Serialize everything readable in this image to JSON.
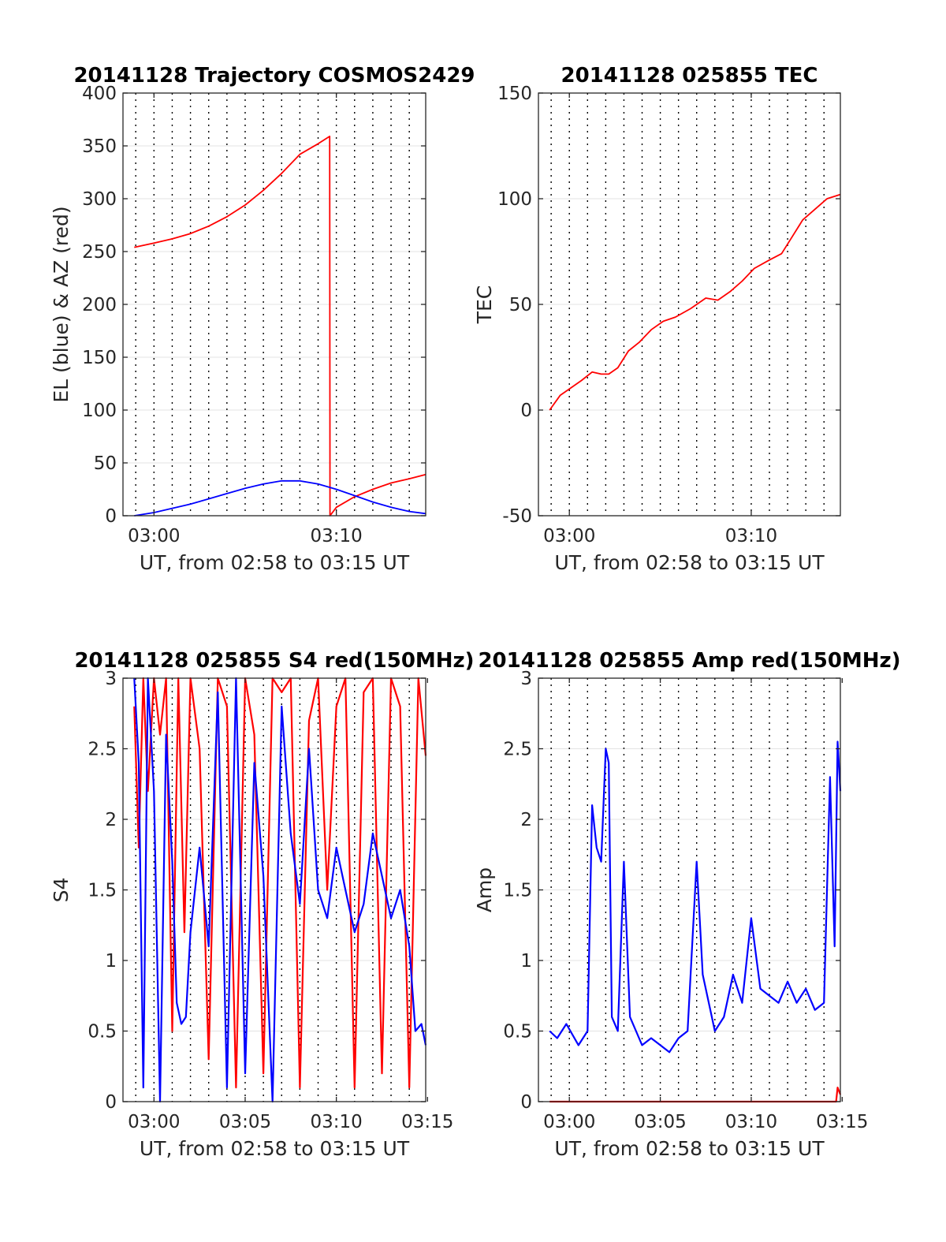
{
  "chart_data": [
    {
      "type": "line",
      "title": "20141128 Trajectory COSMOS2429",
      "xlabel": "UT, from 02:58 to 03:15 UT",
      "ylabel": "EL (blue) & AZ (red)",
      "xlim": [
        "02:58:18",
        "03:14:54"
      ],
      "ylim": [
        0,
        400
      ],
      "xticks": [
        "03:00",
        "03:10"
      ],
      "yticks": [
        0,
        50,
        100,
        150,
        200,
        250,
        300,
        350,
        400
      ],
      "grid": true,
      "colors": {
        "series_a": "#ff0000",
        "series_b": "#0000ff"
      },
      "series": [
        {
          "x": [
            "02:58:55",
            "03:00:00",
            "03:01:00",
            "03:02:00",
            "03:03:00",
            "03:04:00",
            "03:05:00",
            "03:06:00",
            "03:07:00",
            "03:08:00",
            "03:09:00",
            "03:09:38",
            "03:09:39",
            "03:10:00",
            "03:11:00",
            "03:12:00",
            "03:13:00",
            "03:14:00",
            "03:14:54"
          ],
          "y": [
            254,
            258,
            262,
            267,
            274,
            283,
            294,
            308,
            324,
            342,
            352,
            359,
            0,
            8,
            18,
            25,
            31,
            35,
            39
          ]
        },
        {
          "x": [
            "02:58:55",
            "03:00:00",
            "03:01:00",
            "03:02:00",
            "03:03:00",
            "03:04:00",
            "03:05:00",
            "03:06:00",
            "03:07:00",
            "03:08:00",
            "03:09:00",
            "03:10:00",
            "03:11:00",
            "03:12:00",
            "03:13:00",
            "03:14:00",
            "03:14:54"
          ],
          "y": [
            0,
            3,
            7,
            11,
            16,
            21,
            26,
            30,
            33,
            33,
            30,
            25,
            19,
            13,
            8,
            4,
            2
          ]
        }
      ]
    },
    {
      "type": "line",
      "title": "20141128 025855 TEC",
      "xlabel": "UT, from 02:58 to 03:15 UT",
      "ylabel": "TEC",
      "xlim": [
        "02:58:18",
        "03:14:54"
      ],
      "ylim": [
        -50,
        150
      ],
      "xticks": [
        "03:00",
        "03:10"
      ],
      "yticks": [
        -50,
        0,
        50,
        100,
        150
      ],
      "grid": true,
      "colors": {
        "series_a": "#ff0000"
      },
      "series": [
        {
          "x": [
            "02:58:55",
            "02:59:30",
            "03:00:00",
            "03:00:40",
            "03:01:15",
            "03:01:45",
            "03:02:10",
            "03:02:40",
            "03:03:15",
            "03:03:50",
            "03:04:30",
            "03:05:10",
            "03:05:50",
            "03:06:40",
            "03:07:30",
            "03:08:10",
            "03:08:50",
            "03:09:30",
            "03:10:10",
            "03:11:00",
            "03:11:40",
            "03:12:15",
            "03:12:50",
            "03:13:30",
            "03:14:10",
            "03:14:54"
          ],
          "y": [
            0,
            7,
            10,
            14,
            18,
            17,
            17,
            20,
            28,
            32,
            38,
            42,
            44,
            48,
            53,
            52,
            56,
            61,
            67,
            71,
            74,
            82,
            90,
            95,
            100,
            102
          ]
        }
      ]
    },
    {
      "type": "line",
      "title": "20141128 025855 S4 red(150MHz)",
      "xlabel": "UT, from 02:58 to 03:15 UT",
      "ylabel": "S4",
      "xlim": [
        "02:58:18",
        "03:14:54"
      ],
      "ylim": [
        0,
        3
      ],
      "xticks": [
        "03:00",
        "03:05",
        "03:10",
        "03:15"
      ],
      "yticks": [
        0,
        0.5,
        1,
        1.5,
        2,
        2.5,
        3
      ],
      "grid": true,
      "colors": {
        "series_a": "#ff0000",
        "series_b": "#0000ff"
      },
      "series": [
        {
          "x": [
            "02:58:55",
            "02:59:10",
            "02:59:25",
            "02:59:40",
            "03:00:00",
            "03:00:20",
            "03:00:40",
            "03:01:00",
            "03:01:20",
            "03:01:40",
            "03:02:00",
            "03:02:30",
            "03:03:00",
            "03:03:30",
            "03:04:00",
            "03:04:30",
            "03:05:00",
            "03:05:30",
            "03:06:00",
            "03:06:30",
            "03:07:00",
            "03:07:30",
            "03:08:00",
            "03:08:30",
            "03:09:00",
            "03:09:30",
            "03:10:00",
            "03:10:30",
            "03:11:00",
            "03:11:30",
            "03:12:00",
            "03:12:30",
            "03:13:00",
            "03:13:30",
            "03:14:00",
            "03:14:30",
            "03:14:54"
          ],
          "y": [
            2.8,
            1.8,
            3,
            2.2,
            3,
            2.6,
            3,
            0.5,
            3,
            1.2,
            3,
            2.5,
            0.3,
            3,
            2.8,
            0.1,
            3,
            2.6,
            0.2,
            3,
            2.9,
            3,
            0.1,
            2.7,
            3,
            1.5,
            2.8,
            3,
            0.1,
            2.9,
            3,
            0.2,
            3,
            2.8,
            0.1,
            3,
            2.45
          ]
        },
        {
          "x": [
            "02:58:55",
            "02:59:10",
            "02:59:25",
            "02:59:40",
            "03:00:00",
            "03:00:20",
            "03:00:40",
            "03:01:00",
            "03:01:15",
            "03:01:30",
            "03:01:45",
            "03:02:00",
            "03:02:30",
            "03:03:00",
            "03:03:30",
            "03:04:00",
            "03:04:30",
            "03:05:00",
            "03:05:30",
            "03:06:00",
            "03:06:30",
            "03:07:00",
            "03:07:30",
            "03:08:00",
            "03:08:30",
            "03:09:00",
            "03:09:30",
            "03:10:00",
            "03:10:30",
            "03:11:00",
            "03:11:30",
            "03:12:00",
            "03:12:30",
            "03:13:00",
            "03:13:30",
            "03:14:00",
            "03:14:20",
            "03:14:40",
            "03:14:54"
          ],
          "y": [
            3,
            2.4,
            0.1,
            3,
            2.2,
            0,
            2.6,
            1.7,
            0.7,
            0.55,
            0.6,
            1.2,
            1.8,
            1.1,
            2.9,
            0.1,
            3,
            0.2,
            2.4,
            1.6,
            0,
            2.8,
            1.9,
            1.4,
            2.5,
            1.5,
            1.3,
            1.8,
            1.5,
            1.2,
            1.4,
            1.9,
            1.6,
            1.3,
            1.5,
            1.1,
            0.5,
            0.55,
            0.4
          ]
        }
      ]
    },
    {
      "type": "line",
      "title": "20141128 025855 Amp red(150MHz)",
      "xlabel": "UT, from 02:58 to 03:15 UT",
      "ylabel": "Amp",
      "xlim": [
        "02:58:18",
        "03:14:54"
      ],
      "ylim": [
        0,
        3
      ],
      "xticks": [
        "03:00",
        "03:05",
        "03:10",
        "03:15"
      ],
      "yticks": [
        0,
        0.5,
        1,
        1.5,
        2,
        2.5,
        3
      ],
      "grid": true,
      "colors": {
        "series_a": "#ff0000",
        "series_b": "#0000ff"
      },
      "series": [
        {
          "x": [
            "02:58:55",
            "03:14:40",
            "03:14:45",
            "03:14:54"
          ],
          "y": [
            0,
            0,
            0.1,
            0.05
          ]
        },
        {
          "x": [
            "02:58:55",
            "02:59:20",
            "02:59:50",
            "03:00:30",
            "03:01:00",
            "03:01:15",
            "03:01:30",
            "03:01:45",
            "03:02:00",
            "03:02:10",
            "03:02:20",
            "03:02:40",
            "03:03:00",
            "03:03:20",
            "03:03:40",
            "03:04:00",
            "03:04:30",
            "03:05:00",
            "03:05:30",
            "03:06:00",
            "03:06:30",
            "03:07:00",
            "03:07:20",
            "03:07:40",
            "03:08:00",
            "03:08:30",
            "03:09:00",
            "03:09:30",
            "03:10:00",
            "03:10:30",
            "03:11:00",
            "03:11:30",
            "03:12:00",
            "03:12:30",
            "03:13:00",
            "03:13:30",
            "03:14:00",
            "03:14:20",
            "03:14:35",
            "03:14:45",
            "03:14:54"
          ],
          "y": [
            0.5,
            0.45,
            0.55,
            0.4,
            0.5,
            2.1,
            1.8,
            1.7,
            2.5,
            2.4,
            0.6,
            0.5,
            1.7,
            0.6,
            0.5,
            0.4,
            0.45,
            0.4,
            0.35,
            0.45,
            0.5,
            1.7,
            0.9,
            0.7,
            0.5,
            0.6,
            0.9,
            0.7,
            1.3,
            0.8,
            0.75,
            0.7,
            0.85,
            0.7,
            0.8,
            0.65,
            0.7,
            2.3,
            1.1,
            2.55,
            2.2
          ]
        }
      ]
    }
  ]
}
